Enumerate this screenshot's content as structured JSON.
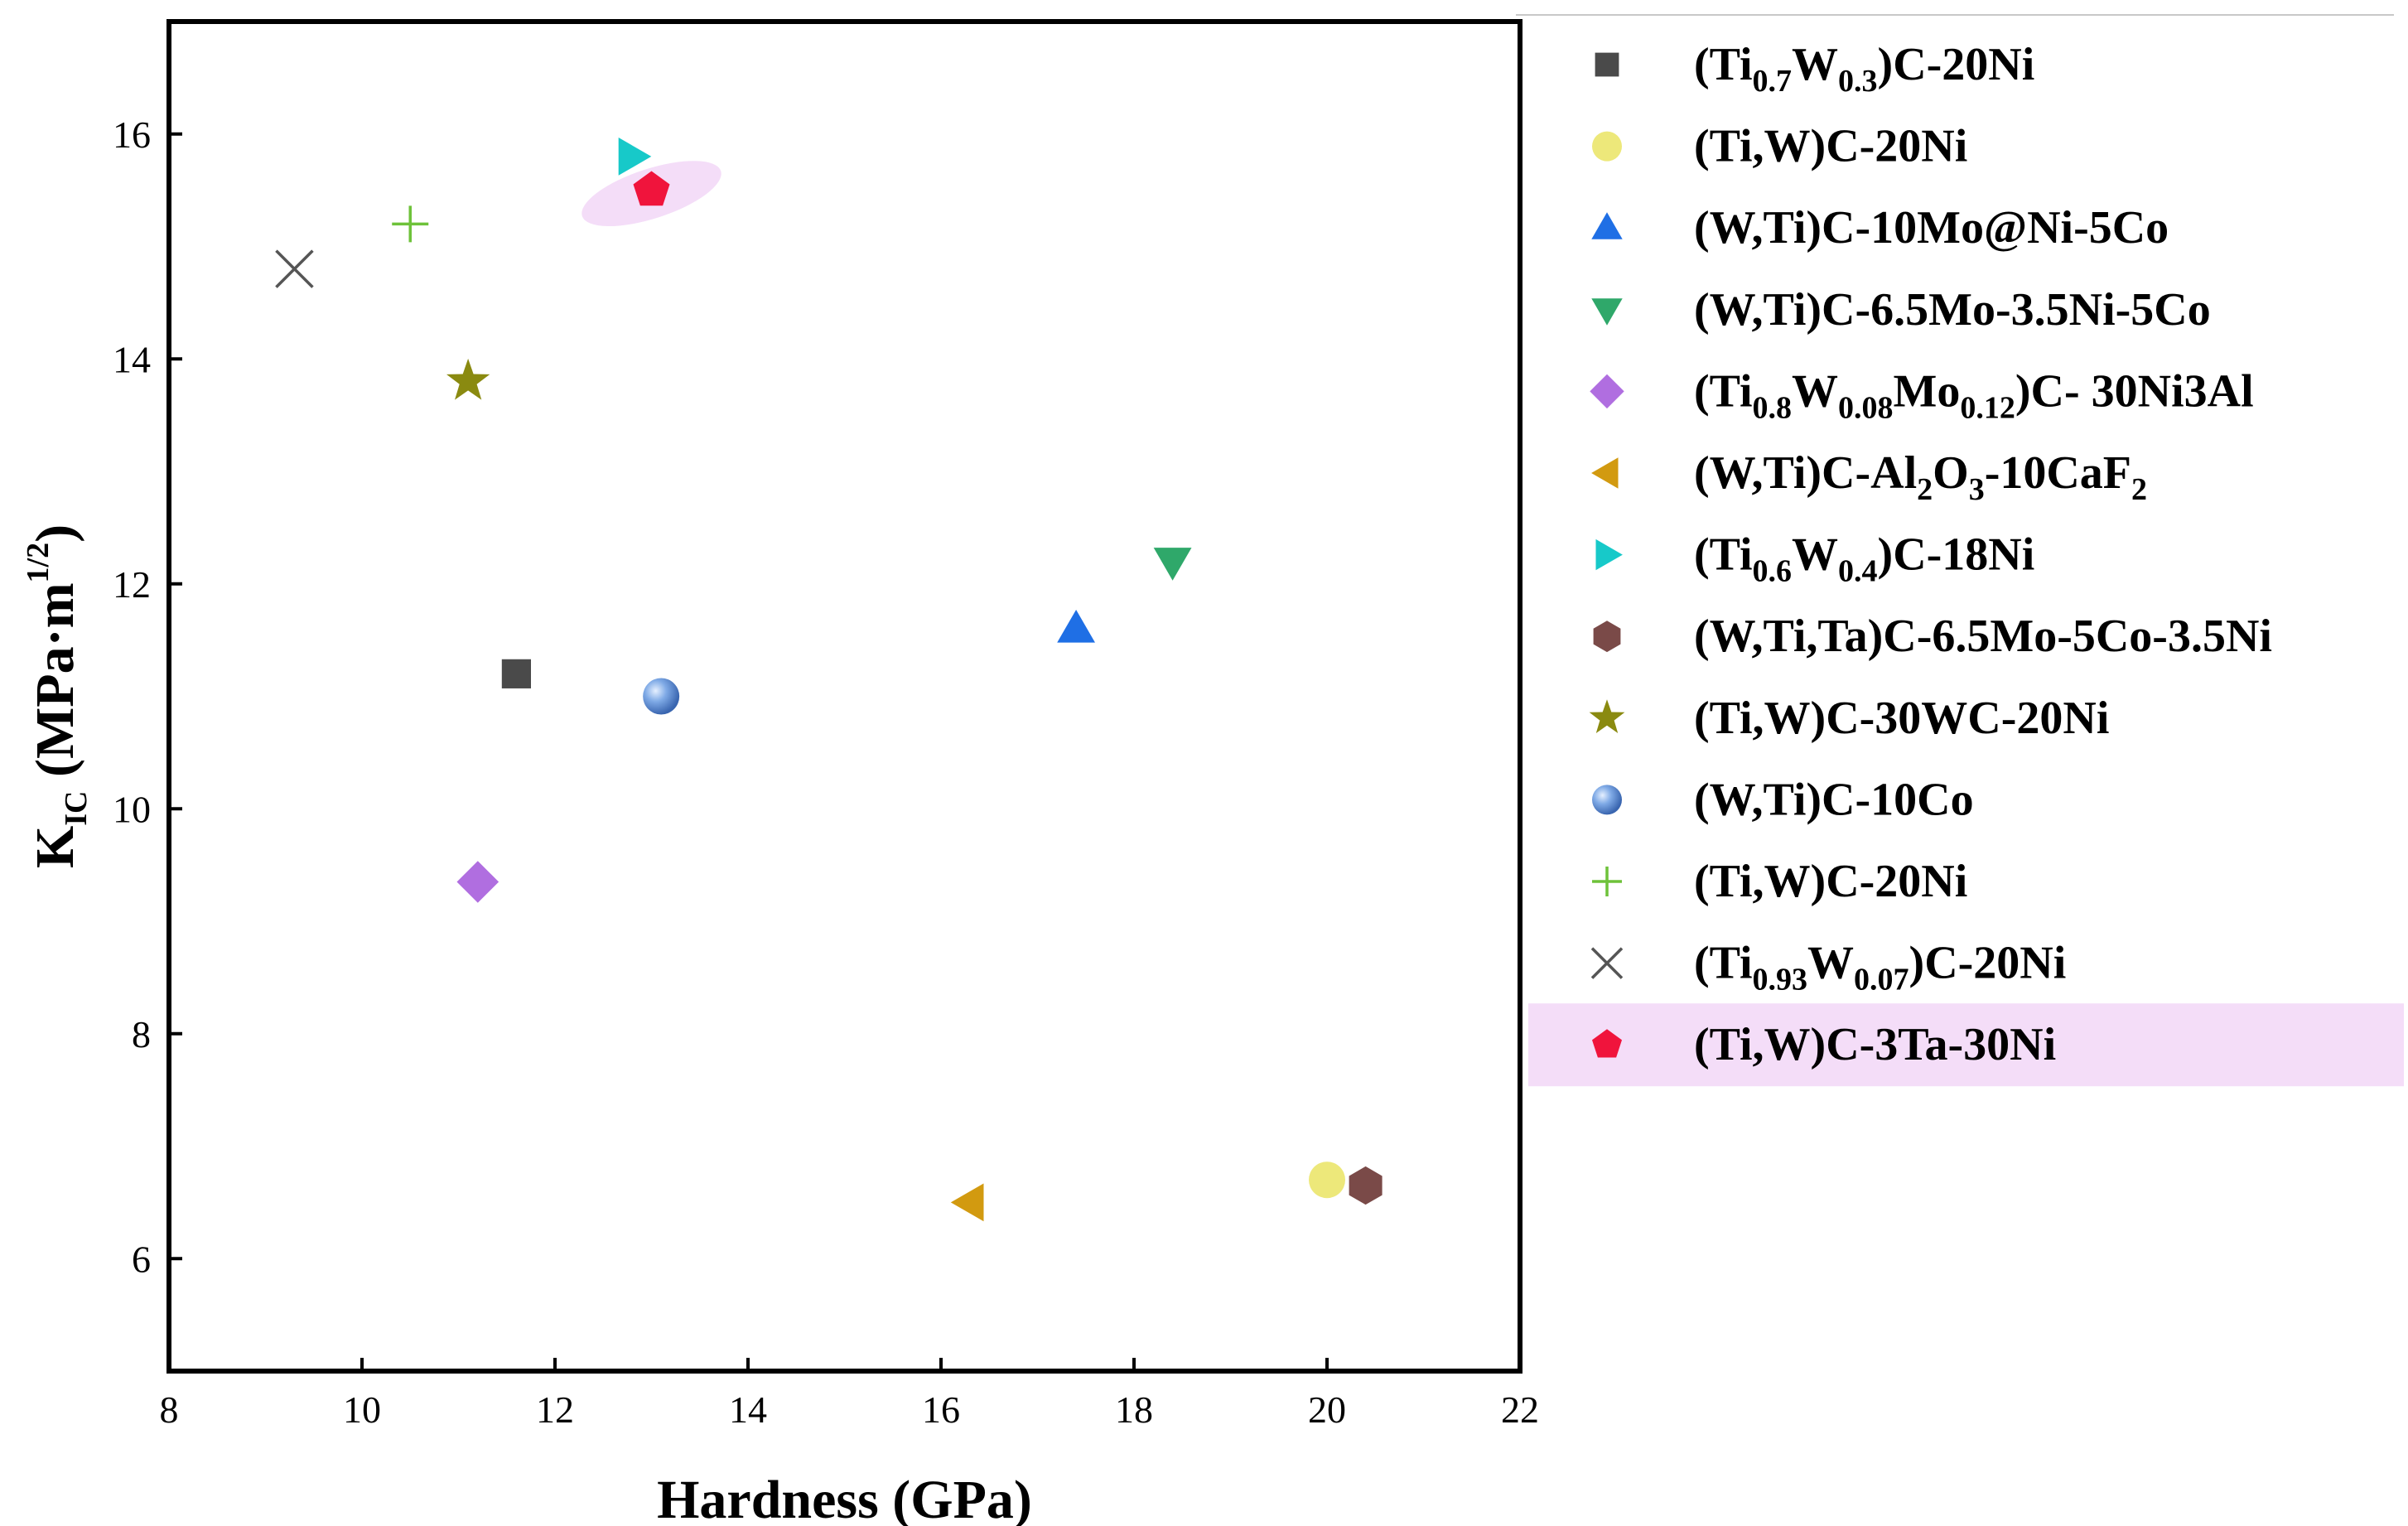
{
  "chart_data": {
    "type": "scatter",
    "xlabel": "Hardness (GPa)",
    "ylabel": {
      "main": "K",
      "sub": "IC",
      "unit": " (MPa·m",
      "sup": "1/2",
      "close": ")"
    },
    "xlim": [
      8,
      22
    ],
    "ylim": [
      5,
      17
    ],
    "xticks": [
      "8",
      "10",
      "12",
      "14",
      "16",
      "18",
      "20",
      "22"
    ],
    "yticks": [
      "6",
      "8",
      "10",
      "12",
      "14",
      "16"
    ],
    "grid": false,
    "legend_position": "right",
    "series": [
      {
        "name": "(Ti0.7W0.3)C-20Ni",
        "label_parts": [
          [
            "(Ti",
            ""
          ],
          [
            "0.7",
            "sub"
          ],
          [
            "W",
            ""
          ],
          [
            "0.3",
            "sub"
          ],
          [
            ")C-20Ni",
            ""
          ]
        ],
        "marker": "square",
        "color": "#4a4a4a",
        "x": 11.6,
        "y": 11.2
      },
      {
        "name": "(Ti,W)C-20Ni",
        "label_parts": [
          [
            "(Ti,W)C-20Ni",
            ""
          ]
        ],
        "marker": "circle",
        "color": "#ede87a",
        "x": 20.0,
        "y": 6.7
      },
      {
        "name": "(W,Ti)C-10Mo@Ni-5Co",
        "label_parts": [
          [
            "(W,Ti)C-10Mo@Ni-5Co",
            ""
          ]
        ],
        "marker": "triangle-up",
        "color": "#1f6fe5",
        "x": 17.4,
        "y": 11.6
      },
      {
        "name": "(W,Ti)C-6.5Mo-3.5Ni-5Co",
        "label_parts": [
          [
            "(W,Ti)C-6.5Mo-3.5Ni-5Co",
            ""
          ]
        ],
        "marker": "triangle-down",
        "color": "#2fa86a",
        "x": 18.4,
        "y": 12.2
      },
      {
        "name": "(Ti0.8W0.08Mo0.12)C- 30Ni3Al",
        "label_parts": [
          [
            "(Ti",
            ""
          ],
          [
            "0.8",
            "sub"
          ],
          [
            "W",
            ""
          ],
          [
            "0.08",
            "sub"
          ],
          [
            "Mo",
            ""
          ],
          [
            "0.12",
            "sub"
          ],
          [
            ")C- 30Ni3Al",
            ""
          ]
        ],
        "marker": "diamond",
        "color": "#b06ee0",
        "x": 11.2,
        "y": 9.35
      },
      {
        "name": "(W,Ti)C-Al2O3-10CaF2",
        "label_parts": [
          [
            "(W,Ti)C-Al",
            ""
          ],
          [
            "2",
            "sub"
          ],
          [
            "O",
            ""
          ],
          [
            "3",
            "sub"
          ],
          [
            "-10CaF",
            ""
          ],
          [
            "2",
            "sub"
          ]
        ],
        "marker": "triangle-left",
        "color": "#d29a10",
        "x": 16.3,
        "y": 6.5
      },
      {
        "name": "(Ti0.6W0.4)C-18Ni",
        "label_parts": [
          [
            "(Ti",
            ""
          ],
          [
            "0.6",
            "sub"
          ],
          [
            "W",
            ""
          ],
          [
            "0.4",
            "sub"
          ],
          [
            ")C-18Ni",
            ""
          ]
        ],
        "marker": "triangle-right",
        "color": "#17c9c9",
        "x": 12.8,
        "y": 15.8
      },
      {
        "name": "(W,Ti,Ta)C-6.5Mo-5Co-3.5Ni",
        "label_parts": [
          [
            "(W,Ti,Ta)C-6.5Mo-5Co-3.5Ni",
            ""
          ]
        ],
        "marker": "hexagon",
        "color": "#7a4a48",
        "x": 20.4,
        "y": 6.65
      },
      {
        "name": "(Ti,W)C-30WC-20Ni",
        "label_parts": [
          [
            "(Ti,W)C-30WC-20Ni",
            ""
          ]
        ],
        "marker": "star",
        "color": "#8a8a10",
        "x": 11.1,
        "y": 13.8
      },
      {
        "name": "(W,Ti)C-10Co",
        "label_parts": [
          [
            "(W,Ti)C-10Co",
            ""
          ]
        ],
        "marker": "sphere",
        "color": "#5b8fd6",
        "x": 13.1,
        "y": 11.0
      },
      {
        "name": "(Ti,W)C-20Ni",
        "label_parts": [
          [
            "(Ti,W)C-20Ni",
            ""
          ]
        ],
        "marker": "plus",
        "color": "#6ec23a",
        "x": 10.5,
        "y": 15.2
      },
      {
        "name": "(Ti0.93W0.07)C-20Ni",
        "label_parts": [
          [
            "(Ti",
            ""
          ],
          [
            "0.93",
            "sub"
          ],
          [
            "W",
            ""
          ],
          [
            "0.07",
            "sub"
          ],
          [
            ")C-20Ni",
            ""
          ]
        ],
        "marker": "cross",
        "color": "#555555",
        "x": 9.3,
        "y": 14.8
      },
      {
        "name": "(Ti,W)C-3Ta-30Ni",
        "label_parts": [
          [
            "(Ti,W)C-3Ta-30Ni",
            ""
          ]
        ],
        "marker": "pentagon",
        "color": "#f0143c",
        "x": 13.0,
        "y": 15.5,
        "highlighted": true
      }
    ],
    "highlight_color": "#f4ddf8"
  }
}
